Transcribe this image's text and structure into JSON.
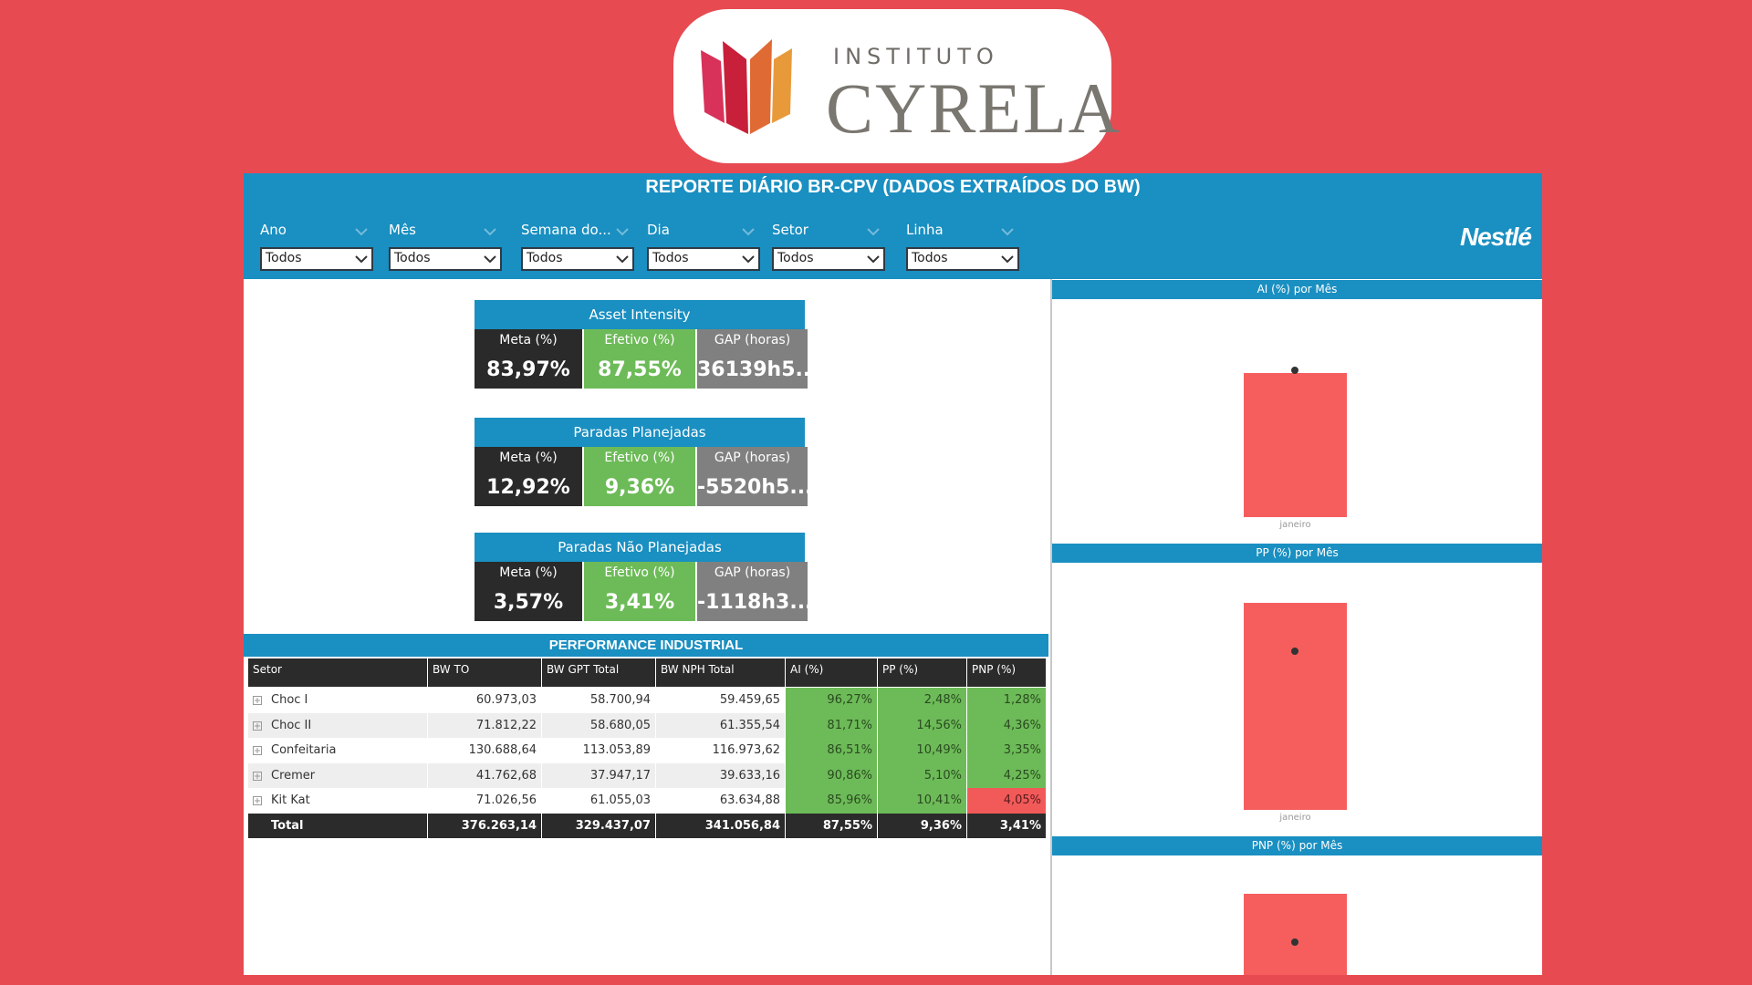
{
  "logo": {
    "small": "INSTITUTO",
    "large": "CYRELA"
  },
  "report": {
    "title": "REPORTE DIÁRIO BR-CPV (DADOS EXTRAÍDOS DO BW)",
    "brand": "Nestlé"
  },
  "filters": [
    {
      "label": "Ano",
      "value": "Todos"
    },
    {
      "label": "Mês",
      "value": "Todos"
    },
    {
      "label": "Semana do...",
      "value": "Todos"
    },
    {
      "label": "Dia",
      "value": "Todos"
    },
    {
      "label": "Setor",
      "value": "Todos"
    },
    {
      "label": "Linha",
      "value": "Todos"
    }
  ],
  "kpis": [
    {
      "title": "Asset Intensity",
      "cells": [
        {
          "label": "Meta (%)",
          "value": "83,97%"
        },
        {
          "label": "Efetivo (%)",
          "value": "87,55%"
        },
        {
          "label": "GAP (horas)",
          "value": "36139h5..."
        }
      ]
    },
    {
      "title": "Paradas Planejadas",
      "cells": [
        {
          "label": "Meta (%)",
          "value": "12,92%"
        },
        {
          "label": "Efetivo (%)",
          "value": "9,36%"
        },
        {
          "label": "GAP (horas)",
          "value": "-5520h5..."
        }
      ]
    },
    {
      "title": "Paradas Não Planejadas",
      "cells": [
        {
          "label": "Meta (%)",
          "value": "3,57%"
        },
        {
          "label": "Efetivo (%)",
          "value": "3,41%"
        },
        {
          "label": "GAP (horas)",
          "value": "-1118h3..."
        }
      ]
    }
  ],
  "table": {
    "title": "PERFORMANCE INDUSTRIAL",
    "columns": [
      "Setor",
      "BW TO",
      "BW GPT Total",
      "BW NPH Total",
      "AI (%)",
      "PP (%)",
      "PNP (%)"
    ],
    "rows": [
      [
        "Choc I",
        "60.973,03",
        "58.700,94",
        "59.459,65",
        "96,27%",
        "2,48%",
        "1,28%"
      ],
      [
        "Choc II",
        "71.812,22",
        "58.680,05",
        "61.355,54",
        "81,71%",
        "14,56%",
        "4,36%"
      ],
      [
        "Confeitaria",
        "130.688,64",
        "113.053,89",
        "116.973,62",
        "86,51%",
        "10,49%",
        "3,35%"
      ],
      [
        "Cremer",
        "41.762,68",
        "37.947,17",
        "39.633,16",
        "90,86%",
        "5,10%",
        "4,25%"
      ],
      [
        "Kit Kat",
        "71.026,56",
        "61.055,03",
        "63.634,88",
        "85,96%",
        "10,41%",
        "4,05%"
      ]
    ],
    "total": [
      "Total",
      "376.263,14",
      "329.437,07",
      "341.056,84",
      "87,55%",
      "9,36%",
      "3,41%"
    ]
  },
  "side_charts": [
    {
      "title": "AI (%) por Mês",
      "category": "janeiro"
    },
    {
      "title": "PP (%) por Mês",
      "category": "janeiro"
    },
    {
      "title": "PNP (%) por Mês"
    }
  ]
}
